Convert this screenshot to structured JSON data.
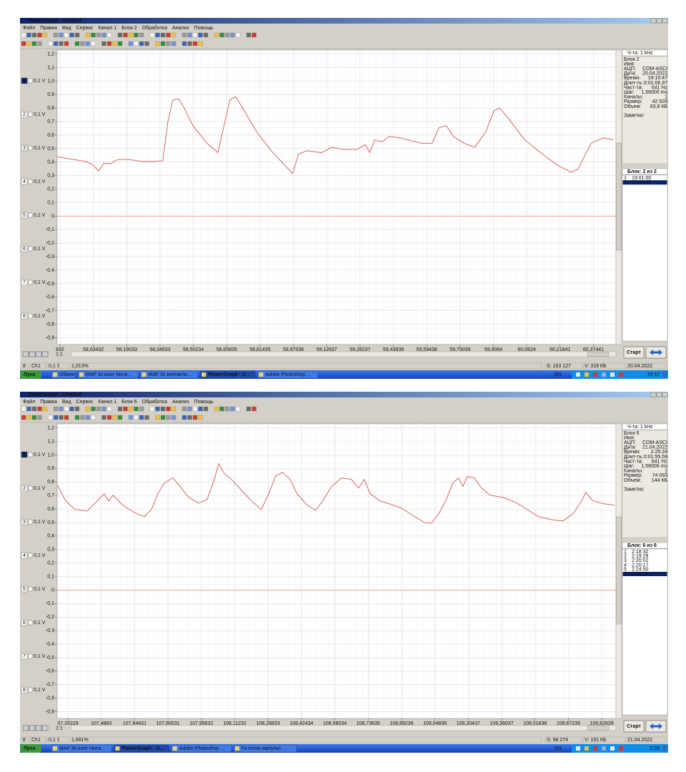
{
  "windows": [
    {
      "title": "PowerGraph - Untitled",
      "menu": [
        "Файл",
        "Правка",
        "Вид",
        "Сервис",
        "Канал 1",
        "Блок 2",
        "Обработка",
        "Анализ",
        "Помощь"
      ],
      "channels": [
        {
          "number": "1",
          "scale": "0,1 V"
        },
        {
          "number": "2",
          "scale": "0,1 V"
        },
        {
          "number": "3",
          "scale": "0,1 V"
        },
        {
          "number": "4",
          "scale": "0,1 V"
        },
        {
          "number": "5",
          "scale": "0,1 V"
        },
        {
          "number": "6",
          "scale": "0,1 V"
        },
        {
          "number": "7",
          "scale": "0,1 V"
        },
        {
          "number": "8",
          "scale": "0,1 V"
        }
      ],
      "active_channel": 0,
      "chart": {
        "type": "line",
        "x": [
          57.865,
          57.999,
          58.032,
          58.059,
          58.082,
          58.116,
          58.149,
          58.199,
          58.266,
          58.316,
          58.359,
          58.383,
          58.406,
          58.433,
          58.46,
          58.5,
          58.566,
          58.617,
          58.65,
          58.673,
          58.7,
          58.733,
          58.8,
          58.867,
          58.934,
          58.967,
          58.994,
          59.034,
          59.101,
          59.151,
          59.201,
          59.268,
          59.308,
          59.328,
          59.351,
          59.385,
          59.418,
          59.468,
          59.518,
          59.569,
          59.619,
          59.652,
          59.686,
          59.719,
          59.769,
          59.819,
          59.869,
          59.909,
          59.936,
          59.976,
          60.053,
          60.136,
          60.203,
          60.27,
          60.303,
          60.337,
          60.364,
          60.421,
          60.471
        ],
        "series": [
          {
            "color": "#d9574a",
            "values": [
              0.44,
              0.405,
              0.38,
              0.335,
              0.39,
              0.39,
              0.42,
              0.42,
              0.405,
              0.405,
              0.41,
              0.7,
              0.86,
              0.87,
              0.8,
              0.67,
              0.54,
              0.47,
              0.7,
              0.86,
              0.885,
              0.8,
              0.62,
              0.485,
              0.37,
              0.315,
              0.46,
              0.485,
              0.47,
              0.51,
              0.495,
              0.495,
              0.53,
              0.47,
              0.565,
              0.55,
              0.59,
              0.58,
              0.56,
              0.54,
              0.54,
              0.655,
              0.67,
              0.59,
              0.54,
              0.51,
              0.62,
              0.78,
              0.8,
              0.725,
              0.565,
              0.46,
              0.38,
              0.325,
              0.35,
              0.46,
              0.54,
              0.58,
              0.565
            ]
          }
        ],
        "zero_line_color": "#f2a58e",
        "xlim": [
          57.865,
          60.48
        ],
        "ylim": [
          -0.95,
          1.23
        ],
        "xticks": [
          {
            "value": 57.87832,
            "label": "832"
          },
          {
            "value": 58.03432,
            "label": "58,03432"
          },
          {
            "value": 58.19033,
            "label": "58,19033"
          },
          {
            "value": 58.34633,
            "label": "58,34633"
          },
          {
            "value": 58.50234,
            "label": "58,50234"
          },
          {
            "value": 58.65835,
            "label": "58,65835"
          },
          {
            "value": 58.81435,
            "label": "58,81435"
          },
          {
            "value": 58.97036,
            "label": "58,97036"
          },
          {
            "value": 59.12637,
            "label": "59,12637"
          },
          {
            "value": 59.28237,
            "label": "59,28237"
          },
          {
            "value": 59.43838,
            "label": "59,43838"
          },
          {
            "value": 59.59438,
            "label": "59,59438"
          },
          {
            "value": 59.75039,
            "label": "59,75039"
          },
          {
            "value": 59.9064,
            "label": "59,9064"
          },
          {
            "value": 60.0624,
            "label": "60,0624"
          },
          {
            "value": 60.21841,
            "label": "60,21841"
          },
          {
            "value": 60.37441,
            "label": "60,37441"
          }
        ],
        "yticks": [
          {
            "value": 1.2,
            "label": "1,2"
          },
          {
            "value": 1.1,
            "label": "1,1"
          },
          {
            "value": 1.0,
            "label": "1,0"
          },
          {
            "value": 0.9,
            "label": "0,9"
          },
          {
            "value": 0.8,
            "label": "0,8"
          },
          {
            "value": 0.7,
            "label": "0,7"
          },
          {
            "value": 0.6,
            "label": "0,6"
          },
          {
            "value": 0.5,
            "label": "0,5"
          },
          {
            "value": 0.4,
            "label": "0,4"
          },
          {
            "value": 0.3,
            "label": "0,3"
          },
          {
            "value": 0.2,
            "label": "0,2"
          },
          {
            "value": 0.1,
            "label": "0,1"
          },
          0,
          {
            "value": -0.1,
            "label": "-0,1"
          },
          {
            "value": -0.2,
            "label": "-0,2"
          },
          {
            "value": -0.3,
            "label": "-0,3"
          },
          {
            "value": -0.4,
            "label": "-0,4"
          },
          {
            "value": -0.5,
            "label": "-0,5"
          },
          {
            "value": -0.6,
            "label": "-0,6"
          },
          {
            "value": -0.7,
            "label": "-0,7"
          },
          {
            "value": -0.8,
            "label": "-0,8"
          },
          {
            "value": -0.9,
            "label": "-0,9"
          }
        ],
        "grid": true
      },
      "panel": {
        "rate": "Ч-та: 1 kHz",
        "info": [
          {
            "label": "Блок 2"
          },
          {
            "label": "Имя:"
          },
          {
            "label": "АЦП:",
            "value": "COM-ASCI"
          },
          {
            "label": "Дата:",
            "value": "20.04.2022"
          },
          {
            "label": "Время:",
            "value": "19:10:47"
          },
          {
            "label": "Длит-ть:",
            "value": "0:01:06,97"
          },
          {
            "label": "Част-та:",
            "value": "641 Hz"
          },
          {
            "label": "Шаг:",
            "value": "1,56006 ms"
          },
          {
            "label": "Каналы:",
            "value": "1"
          },
          {
            "label": "Размер:",
            "value": "42 928"
          },
          {
            "label": "Объем:",
            "value": "83,8 КБ"
          }
        ],
        "notes": "Заметки:",
        "blocks_header": "Блок: 2 из 2",
        "blocks": [
          [
            "1",
            "19:01:00"
          ],
          [
            "2",
            "19:10:47"
          ]
        ],
        "selected_block": 1
      },
      "zoom": "1:1",
      "start": "Старт",
      "status": [
        "8",
        "Ch1",
        "0,1 ‡",
        "1,013%",
        "S: 163 127",
        "V: 318 КБ",
        "20.04.2022"
      ],
      "taskbar": {
        "start": "Пуск",
        "tasks": [
          "Обмен",
          "MAF 3x конт Нита...",
          "MAF 3x контакти...",
          "PowerGraph - U...",
          "Adobe Photoshop ..."
        ],
        "active_task": 3,
        "lang": "EN",
        "clock": "19:12"
      }
    },
    {
      "title": "PowerGraph - Untitled",
      "menu": [
        "Файл",
        "Правка",
        "Вид",
        "Сервис",
        "Канал 1",
        "Блок 6",
        "Обработка",
        "Анализ",
        "Помощь"
      ],
      "channels": [
        {
          "number": "1",
          "scale": "0,1 V"
        },
        {
          "number": "2",
          "scale": "0,1 V"
        },
        {
          "number": "3",
          "scale": "0,1 V"
        },
        {
          "number": "4",
          "scale": "0,1 V"
        },
        {
          "number": "5",
          "scale": "0,1 V"
        },
        {
          "number": "6",
          "scale": "0,1 V"
        },
        {
          "number": "7",
          "scale": "0,1 V"
        },
        {
          "number": "8",
          "scale": "0,1 V"
        }
      ],
      "active_channel": 0,
      "chart": {
        "type": "line",
        "x": [
          107.282,
          107.322,
          107.366,
          107.422,
          107.476,
          107.502,
          107.522,
          107.543,
          107.589,
          107.643,
          107.69,
          107.723,
          107.756,
          107.783,
          107.823,
          107.857,
          107.897,
          107.943,
          107.983,
          108.017,
          108.037,
          108.064,
          108.097,
          108.144,
          108.19,
          108.237,
          108.271,
          108.304,
          108.337,
          108.371,
          108.404,
          108.451,
          108.491,
          108.524,
          108.565,
          108.611,
          108.658,
          108.691,
          108.718,
          108.745,
          108.792,
          108.845,
          108.892,
          108.945,
          108.999,
          109.032,
          109.066,
          109.099,
          109.132,
          109.159,
          109.179,
          109.199,
          109.233,
          109.266,
          109.306,
          109.366,
          109.426,
          109.48,
          109.533,
          109.593,
          109.647,
          109.694,
          109.734,
          109.754,
          109.787,
          109.841,
          109.888
        ],
        "series": [
          {
            "color": "#d9574a",
            "values": [
              0.777,
              0.66,
              0.596,
              0.585,
              0.67,
              0.713,
              0.66,
              0.702,
              0.628,
              0.574,
              0.543,
              0.596,
              0.723,
              0.793,
              0.83,
              0.766,
              0.686,
              0.644,
              0.67,
              0.819,
              0.936,
              0.862,
              0.819,
              0.739,
              0.66,
              0.596,
              0.713,
              0.846,
              0.872,
              0.819,
              0.713,
              0.628,
              0.59,
              0.66,
              0.766,
              0.83,
              0.819,
              0.755,
              0.819,
              0.713,
              0.66,
              0.633,
              0.606,
              0.553,
              0.5,
              0.495,
              0.564,
              0.66,
              0.793,
              0.83,
              0.766,
              0.84,
              0.83,
              0.755,
              0.702,
              0.686,
              0.649,
              0.596,
              0.543,
              0.521,
              0.511,
              0.564,
              0.66,
              0.723,
              0.66,
              0.638,
              0.628
            ]
          }
        ],
        "zero_line_color": "#f2a58e",
        "xlim": [
          107.282,
          109.895
        ],
        "ylim": [
          -0.95,
          1.23
        ],
        "xticks": [
          {
            "value": 107.33229,
            "label": "07,33229"
          },
          {
            "value": 107.4883,
            "label": "107,4883"
          },
          {
            "value": 107.64431,
            "label": "107,64431"
          },
          {
            "value": 107.80031,
            "label": "107,80031"
          },
          {
            "value": 107.95632,
            "label": "107,95632"
          },
          {
            "value": 108.11232,
            "label": "108,11232"
          },
          {
            "value": 108.26833,
            "label": "108,26833"
          },
          {
            "value": 108.42434,
            "label": "108,42434"
          },
          {
            "value": 108.58034,
            "label": "108,58034"
          },
          {
            "value": 108.73635,
            "label": "108,73635"
          },
          {
            "value": 108.89236,
            "label": "108,89236"
          },
          {
            "value": 109.04836,
            "label": "109,04836"
          },
          {
            "value": 109.20437,
            "label": "109,20437"
          },
          {
            "value": 109.36037,
            "label": "109,36037"
          },
          {
            "value": 109.51638,
            "label": "109,51638"
          },
          {
            "value": 109.67239,
            "label": "109,67239"
          },
          {
            "value": 109.82839,
            "label": "109,82839"
          }
        ],
        "yticks": [
          {
            "value": 1.2,
            "label": "1,2"
          },
          {
            "value": 1.1,
            "label": "1,1"
          },
          {
            "value": 1.0,
            "label": "1,0"
          },
          {
            "value": 0.9,
            "label": "0,9"
          },
          {
            "value": 0.8,
            "label": "0,8"
          },
          {
            "value": 0.7,
            "label": "0,7"
          },
          {
            "value": 0.6,
            "label": "0,6"
          },
          {
            "value": 0.5,
            "label": "0,5"
          },
          {
            "value": 0.4,
            "label": "0,4"
          },
          {
            "value": 0.3,
            "label": "0,3"
          },
          {
            "value": 0.2,
            "label": "0,2"
          },
          {
            "value": 0.1,
            "label": "0,1"
          },
          0,
          {
            "value": -0.1,
            "label": "-0,1"
          },
          {
            "value": -0.2,
            "label": "-0,2"
          },
          {
            "value": -0.3,
            "label": "-0,3"
          },
          {
            "value": -0.4,
            "label": "-0,4"
          },
          {
            "value": -0.5,
            "label": "-0,5"
          },
          {
            "value": -0.6,
            "label": "-0,6"
          },
          {
            "value": -0.7,
            "label": "-0,7"
          },
          {
            "value": -0.8,
            "label": "-0,8"
          },
          {
            "value": -0.9,
            "label": "-0,9"
          }
        ],
        "grid": true
      },
      "panel": {
        "rate": "Ч-та: 1 kHz",
        "info": [
          {
            "label": "Блок 6"
          },
          {
            "label": "Имя:"
          },
          {
            "label": "АЦП:",
            "value": "COM-ASCI"
          },
          {
            "label": "Дата:",
            "value": "21.04.2022"
          },
          {
            "label": "Время:",
            "value": "2:25:24"
          },
          {
            "label": "Длит-ть:",
            "value": "0:01:55,59"
          },
          {
            "label": "Част-та:",
            "value": "641 Hz"
          },
          {
            "label": "Шаг:",
            "value": "1,56006 ms"
          },
          {
            "label": "Каналы:",
            "value": "1"
          },
          {
            "label": "Размер:",
            "value": "74 093"
          },
          {
            "label": "Объем:",
            "value": "144 КБ"
          }
        ],
        "notes": "Заметки:",
        "blocks_header": "Блок: 6 из 6",
        "blocks": [
          [
            "1",
            "2:18:32"
          ],
          [
            "2",
            "2:19:29"
          ],
          [
            "3",
            "2:20:02"
          ],
          [
            "4",
            "2:20:17"
          ],
          [
            "5",
            "2:24:50"
          ],
          [
            "6",
            "2:25:24"
          ]
        ],
        "selected_block": 5
      },
      "zoom": "1:1",
      "start": "Старт",
      "status": [
        "8",
        "Ch1",
        "0,1 ‡",
        "1,681%",
        "S: 98 274",
        "V: 191 КБ",
        "21.04.2022"
      ],
      "taskbar": {
        "start": "Пуск",
        "tasks": [
          "MAF 3x конт Нита...",
          "PowerGraph - U...",
          "Adobe Photoshop ...",
          "Го поток импульс ..."
        ],
        "active_task": 1,
        "lang": "EN",
        "clock": "2:28"
      }
    }
  ]
}
